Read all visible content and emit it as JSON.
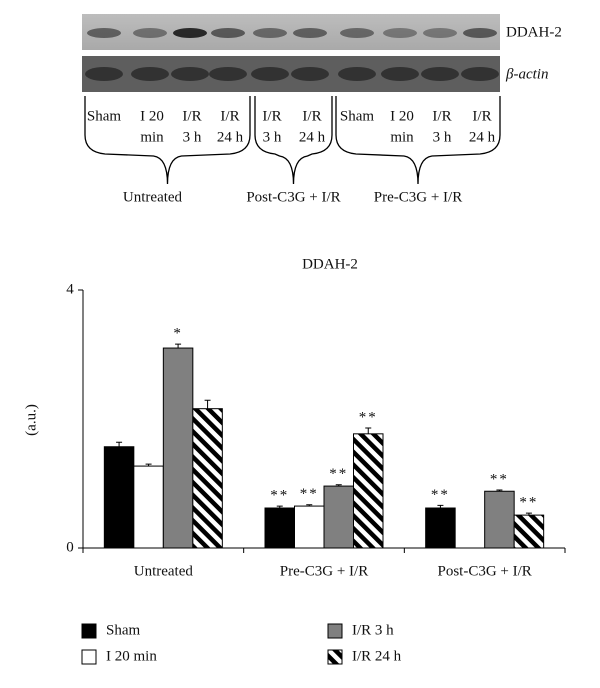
{
  "blot": {
    "rows": [
      "DDAH-2",
      "β-actin"
    ],
    "lanes": [
      [
        "Sham"
      ],
      [
        "I 20",
        "min"
      ],
      [
        "I/R",
        "3 h"
      ],
      [
        "I/R",
        "24 h"
      ],
      [
        "I/R",
        "3 h"
      ],
      [
        "I/R",
        "24 h"
      ],
      [
        "Sham"
      ],
      [
        "I 20",
        "min"
      ],
      [
        "I/R",
        "3 h"
      ],
      [
        "I/R",
        "24 h"
      ]
    ],
    "groups": [
      "Untreated",
      "Post-C3G + I/R",
      "Pre-C3G + I/R"
    ]
  },
  "chart_data": {
    "type": "bar",
    "title": "DDAH-2",
    "y_label": "(a.u.)",
    "categories": [
      "Untreated",
      "Pre-C3G + I/R",
      "Post-C3G + I/R"
    ],
    "ylim": [
      0,
      4
    ],
    "yticks": [
      0,
      4
    ],
    "grid": false,
    "series": [
      {
        "name": "Sham",
        "color": "#000000",
        "values": [
          1.57,
          0.62,
          0.62
        ],
        "errors": [
          0.07,
          0.03,
          0.04
        ],
        "significance": [
          null,
          "**",
          "**"
        ]
      },
      {
        "name": "I 20 min",
        "color": "#ffffff",
        "values": [
          1.27,
          0.65,
          null
        ],
        "errors": [
          0.03,
          0.02,
          null
        ],
        "significance": [
          null,
          "**",
          null
        ]
      },
      {
        "name": "I/R 3 h",
        "color": "#808080",
        "values": [
          3.1,
          0.96,
          0.88
        ],
        "errors": [
          0.06,
          0.02,
          0.02
        ],
        "significance": [
          "*",
          "**",
          "**"
        ]
      },
      {
        "name": "I/R 24 h",
        "color": "#000000",
        "pattern": "diagonal",
        "values": [
          2.16,
          1.77,
          0.51
        ],
        "errors": [
          0.13,
          0.09,
          0.03
        ],
        "significance": [
          null,
          "**",
          "**"
        ]
      }
    ]
  }
}
